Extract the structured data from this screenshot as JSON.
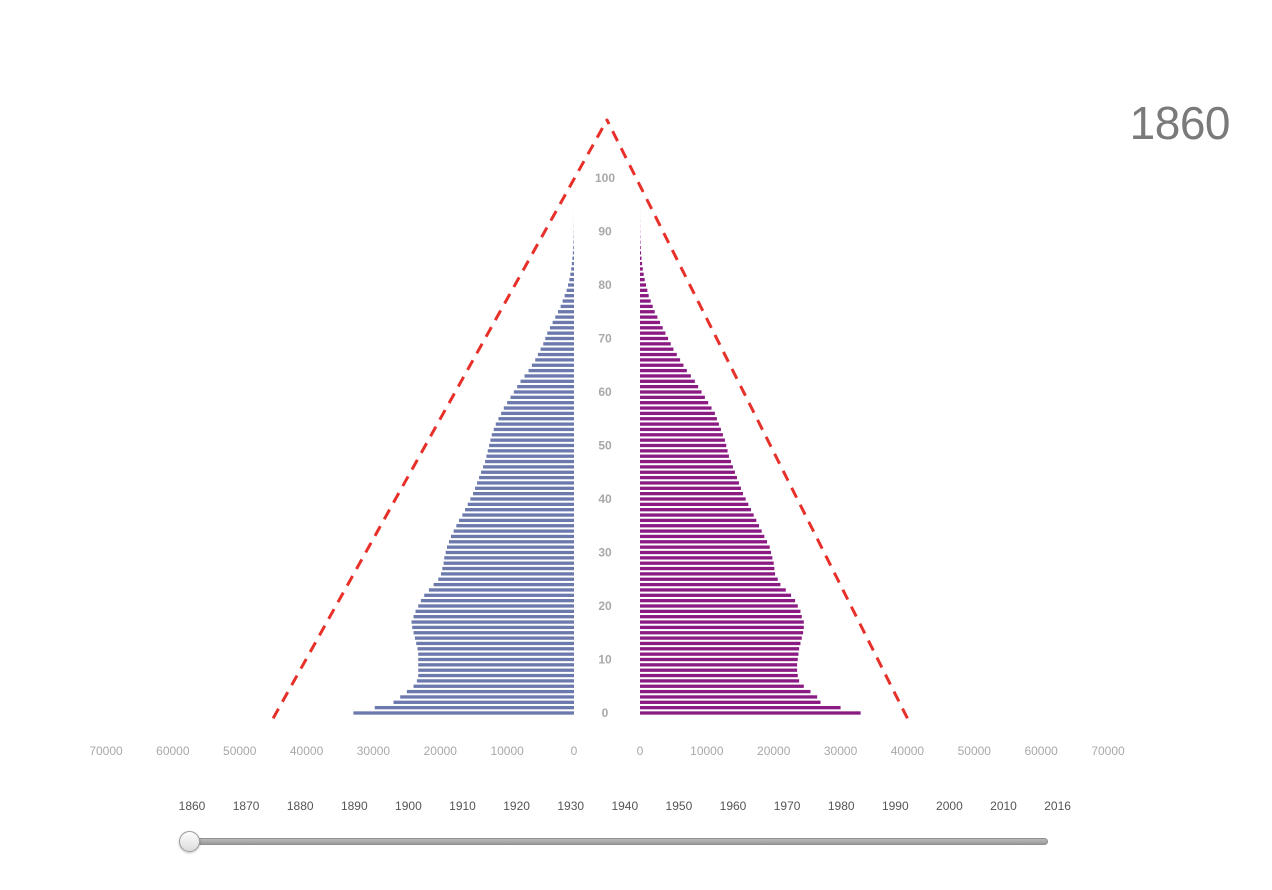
{
  "display": {
    "year": "1860"
  },
  "colors": {
    "male": "#6b79ad",
    "female": "#8b1b83",
    "guide": "#e8302a",
    "axis_text": "#a8a8a8"
  },
  "slider": {
    "years": [
      "1860",
      "1870",
      "1880",
      "1890",
      "1900",
      "1910",
      "1920",
      "1930",
      "1940",
      "1950",
      "1960",
      "1970",
      "1980",
      "1990",
      "2000",
      "2010",
      "2016"
    ],
    "current_value": 1860,
    "min": 1860,
    "max": 2016
  },
  "chart_data": {
    "type": "bar",
    "orientation": "horizontal-population-pyramid",
    "title": "",
    "xlabel": "",
    "ylabel": "",
    "xlim": [
      0,
      70000
    ],
    "x_ticks": [
      "70000",
      "60000",
      "50000",
      "40000",
      "30000",
      "20000",
      "10000",
      "0"
    ],
    "age_ticks": [
      "0",
      "10",
      "20",
      "30",
      "40",
      "50",
      "60",
      "70",
      "80",
      "90",
      "100"
    ],
    "age_range": [
      0,
      100
    ],
    "categories": [
      0,
      1,
      2,
      3,
      4,
      5,
      6,
      7,
      8,
      9,
      10,
      11,
      12,
      13,
      14,
      15,
      16,
      17,
      18,
      19,
      20,
      21,
      22,
      23,
      24,
      25,
      26,
      27,
      28,
      29,
      30,
      31,
      32,
      33,
      34,
      35,
      36,
      37,
      38,
      39,
      40,
      41,
      42,
      43,
      44,
      45,
      46,
      47,
      48,
      49,
      50,
      51,
      52,
      53,
      54,
      55,
      56,
      57,
      58,
      59,
      60,
      61,
      62,
      63,
      64,
      65,
      66,
      67,
      68,
      69,
      70,
      71,
      72,
      73,
      74,
      75,
      76,
      77,
      78,
      79,
      80,
      81,
      82,
      83,
      84,
      85,
      86,
      87,
      88,
      89,
      90,
      91,
      92,
      93,
      94,
      95,
      96,
      97,
      98,
      99,
      100
    ],
    "series": [
      {
        "values": [
          33000,
          29800,
          27000,
          26000,
          25000,
          24000,
          23500,
          23300,
          23300,
          23300,
          23300,
          23300,
          23400,
          23600,
          23800,
          24000,
          24200,
          24300,
          24000,
          23700,
          23300,
          22900,
          22400,
          21700,
          21000,
          20300,
          19900,
          19700,
          19500,
          19400,
          19200,
          19000,
          18700,
          18400,
          18000,
          17600,
          17200,
          16700,
          16300,
          15900,
          15500,
          15100,
          14800,
          14500,
          14200,
          13900,
          13600,
          13300,
          13100,
          12900,
          12700,
          12500,
          12300,
          12000,
          11700,
          11300,
          10900,
          10500,
          10000,
          9500,
          9000,
          8500,
          8000,
          7400,
          6800,
          6300,
          5800,
          5400,
          5000,
          4600,
          4300,
          4000,
          3600,
          3200,
          2800,
          2400,
          2000,
          1700,
          1400,
          1100,
          900,
          700,
          550,
          420,
          320,
          240,
          170,
          120,
          80,
          50,
          30,
          20,
          12,
          8,
          5,
          3,
          2,
          1,
          0,
          0,
          0
        ]
      },
      {
        "values": [
          33000,
          30000,
          27000,
          26500,
          25500,
          24500,
          23800,
          23600,
          23500,
          23500,
          23600,
          23700,
          23800,
          24000,
          24200,
          24400,
          24500,
          24500,
          24200,
          24000,
          23600,
          23200,
          22600,
          21800,
          21000,
          20600,
          20200,
          20100,
          20000,
          19800,
          19600,
          19400,
          19000,
          18600,
          18200,
          17800,
          17400,
          17000,
          16600,
          16200,
          15800,
          15400,
          15100,
          14800,
          14500,
          14200,
          13900,
          13600,
          13300,
          13100,
          12900,
          12700,
          12400,
          12100,
          11800,
          11500,
          11200,
          10700,
          10200,
          9700,
          9200,
          8700,
          8200,
          7600,
          7000,
          6500,
          6000,
          5500,
          5000,
          4600,
          4200,
          3800,
          3400,
          3000,
          2600,
          2200,
          1900,
          1600,
          1300,
          1100,
          900,
          700,
          550,
          420,
          310,
          230,
          160,
          110,
          70,
          45,
          28,
          18,
          11,
          7,
          4,
          2,
          1,
          1,
          0,
          0,
          0
        ]
      }
    ],
    "guides": {
      "style": "dashed",
      "male_line": {
        "from": {
          "value": 45000,
          "age": -1
        },
        "to": {
          "value": -5000,
          "age": 111
        }
      },
      "female_line": {
        "from": {
          "value": 40000,
          "age": -1
        },
        "to": {
          "value": -5000,
          "age": 111
        }
      }
    }
  }
}
